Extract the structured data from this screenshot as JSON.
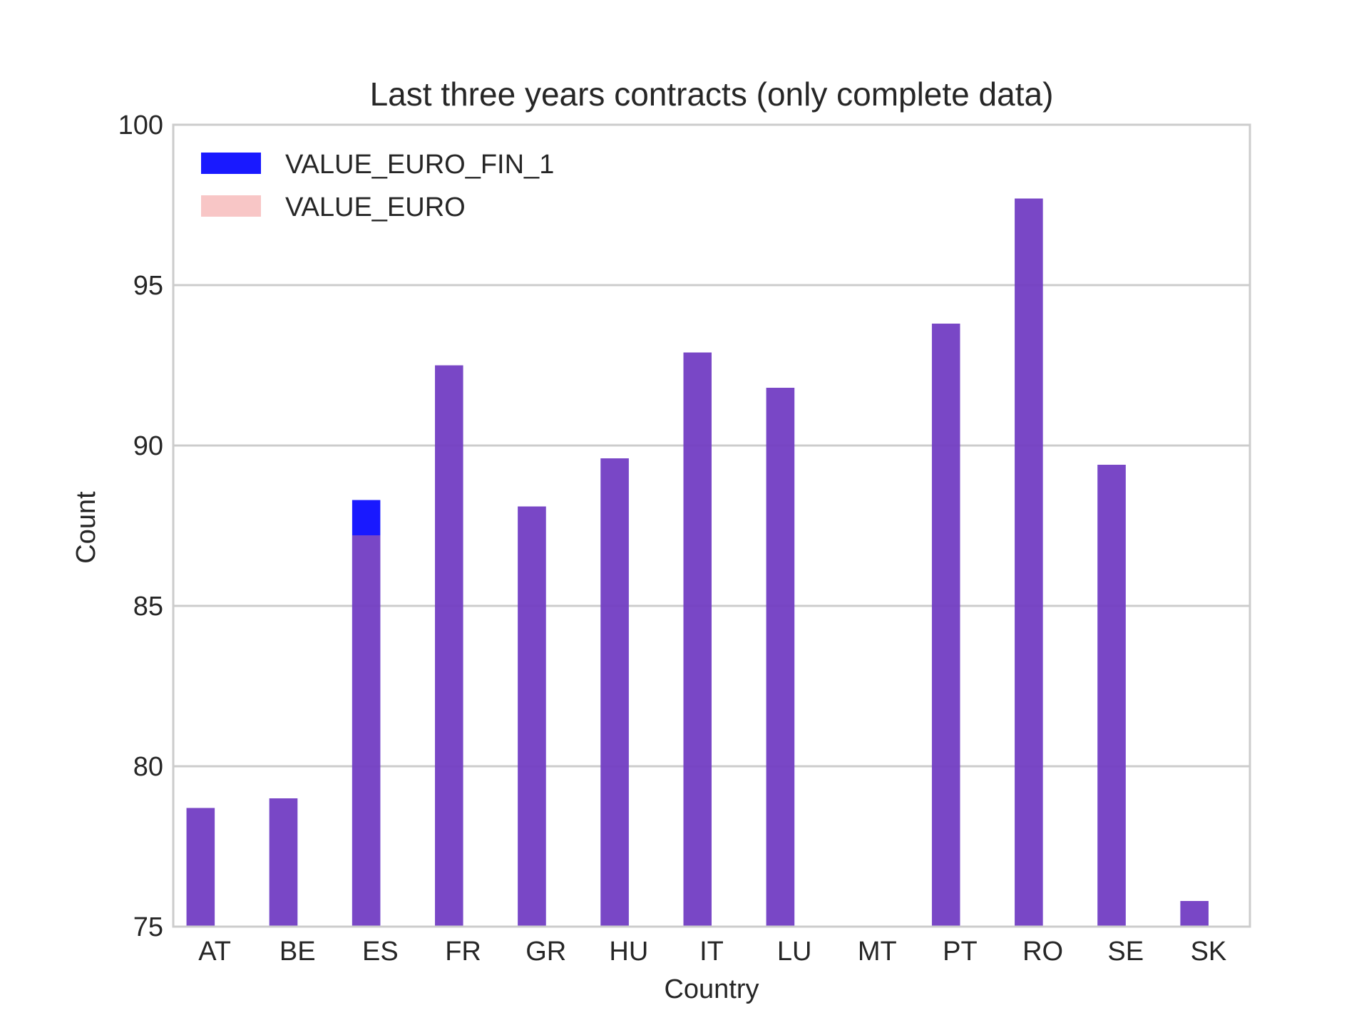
{
  "chart_data": {
    "type": "bar",
    "title": "Last three years contracts (only complete data)",
    "xlabel": "Country",
    "ylabel": "Count",
    "ylim": [
      75,
      100
    ],
    "yticks": [
      75,
      80,
      85,
      90,
      95,
      100
    ],
    "grid": true,
    "legend_position": "top-left",
    "categories": [
      "AT",
      "BE",
      "ES",
      "FR",
      "GR",
      "HU",
      "IT",
      "LU",
      "MT",
      "PT",
      "RO",
      "SE",
      "SK"
    ],
    "series": [
      {
        "name": "VALUE_EURO_FIN_1",
        "color": "#0000ff",
        "opacity": 0.9,
        "values": [
          78.7,
          79.0,
          88.3,
          92.5,
          88.1,
          89.6,
          92.9,
          91.8,
          75.0,
          93.8,
          97.7,
          89.4,
          75.8
        ]
      },
      {
        "name": "VALUE_EURO",
        "color": "#f08080",
        "opacity": 0.45,
        "values": [
          78.7,
          79.0,
          87.2,
          92.5,
          88.1,
          89.6,
          92.9,
          91.8,
          75.0,
          93.8,
          97.7,
          89.4,
          75.8
        ]
      }
    ]
  }
}
